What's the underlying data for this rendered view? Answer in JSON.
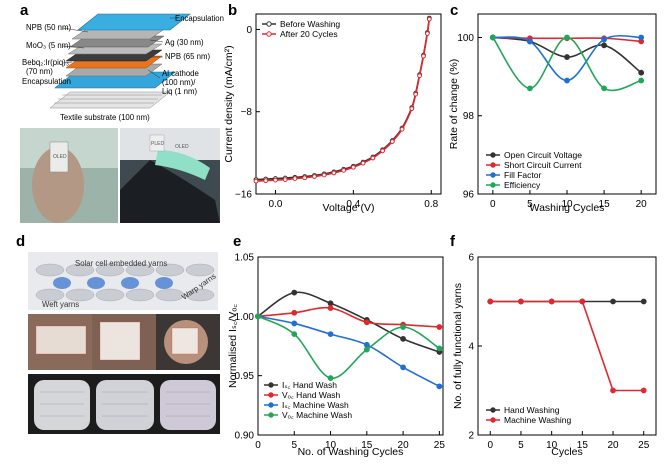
{
  "panels": {
    "a": {
      "label": "a"
    },
    "b": {
      "label": "b"
    },
    "c": {
      "label": "c"
    },
    "d": {
      "label": "d"
    },
    "e": {
      "label": "e"
    },
    "f": {
      "label": "f"
    }
  },
  "panel_a": {
    "layers": [
      {
        "name": "encapsulation-label",
        "text": "Encapsulation"
      },
      {
        "name": "npb50-label",
        "text": "NPB (50 nm)"
      },
      {
        "name": "ag-label",
        "text": "Ag (30 nm)"
      },
      {
        "name": "moo3-label",
        "text": "MoO₃ (5 nm)"
      },
      {
        "name": "npb65-label",
        "text": "NPB (65 nm)"
      },
      {
        "name": "bebq-label",
        "text": "Bebq₂:Ir(piq)₃"
      },
      {
        "name": "bebq-thickness-label",
        "text": "(70 nm)"
      },
      {
        "name": "al-label",
        "text": "Al cathode"
      },
      {
        "name": "al-thickness-label",
        "text": "(100 nm)/"
      },
      {
        "name": "liq-label",
        "text": "Liq (1 nm)"
      },
      {
        "name": "encapsulation-bottom-label",
        "text": "Encapsulation"
      },
      {
        "name": "textile-label",
        "text": "Textile substrate (100 nm)"
      }
    ],
    "photo_text": [
      "OLED",
      "PLED",
      "OLED"
    ]
  },
  "panel_d": {
    "annotations": [
      "Solar cell embedded yarns",
      "Weft yarns",
      "Warp yarns"
    ]
  },
  "colors": {
    "black": "#333333",
    "red": "#e0282e",
    "blue": "#1f6fd6",
    "green": "#21a65a"
  },
  "chart_data": [
    {
      "id": "b",
      "type": "line",
      "xlabel": "Voltage (V)",
      "ylabel": "Current density (mA/cm²)",
      "xlim": [
        -0.1,
        0.85
      ],
      "ylim": [
        -16,
        1.5
      ],
      "xticks": [
        0.0,
        0.4,
        0.8
      ],
      "xtick_labels": [
        "0.0",
        "0.4",
        "0.8"
      ],
      "yticks": [
        -16,
        -8,
        0
      ],
      "ytick_labels": [
        "−16",
        "−8",
        "0"
      ],
      "legend": "top-left",
      "series": [
        {
          "name": "Before Washing",
          "color": "#333333",
          "x": [
            -0.1,
            -0.05,
            0.0,
            0.05,
            0.1,
            0.15,
            0.2,
            0.25,
            0.3,
            0.35,
            0.4,
            0.45,
            0.5,
            0.55,
            0.6,
            0.65,
            0.7,
            0.72,
            0.74,
            0.76,
            0.78,
            0.79
          ],
          "y": [
            -14.6,
            -14.55,
            -14.5,
            -14.45,
            -14.38,
            -14.3,
            -14.2,
            -14.05,
            -13.85,
            -13.6,
            -13.3,
            -12.9,
            -12.4,
            -11.7,
            -10.8,
            -9.6,
            -7.6,
            -6.2,
            -4.4,
            -2.5,
            -0.3,
            1.1
          ]
        },
        {
          "name": "After 20 Cycles",
          "color": "#e0282e",
          "x": [
            -0.1,
            -0.05,
            0.0,
            0.05,
            0.1,
            0.15,
            0.2,
            0.25,
            0.3,
            0.35,
            0.4,
            0.45,
            0.5,
            0.55,
            0.6,
            0.65,
            0.7,
            0.72,
            0.74,
            0.76,
            0.78,
            0.79
          ],
          "y": [
            -14.75,
            -14.7,
            -14.65,
            -14.6,
            -14.5,
            -14.42,
            -14.3,
            -14.15,
            -13.95,
            -13.7,
            -13.4,
            -13.0,
            -12.5,
            -11.8,
            -10.9,
            -9.7,
            -7.7,
            -6.3,
            -4.5,
            -2.6,
            -0.4,
            1.0
          ]
        }
      ]
    },
    {
      "id": "c",
      "type": "line",
      "xlabel": "Washing Cycles",
      "ylabel": "Rate of change (%)",
      "xlim": [
        -2,
        22
      ],
      "ylim": [
        96,
        100.6
      ],
      "xticks": [
        0,
        5,
        10,
        15,
        20
      ],
      "xtick_labels": [
        "0",
        "5",
        "10",
        "15",
        "20"
      ],
      "yticks": [
        96,
        98,
        100
      ],
      "ytick_labels": [
        "96",
        "98",
        "100"
      ],
      "legend": "bottom-left",
      "series": [
        {
          "name": "Open Circuit Voltage",
          "color": "#333333",
          "x": [
            0,
            5,
            10,
            15,
            20
          ],
          "y": [
            100.0,
            99.9,
            99.5,
            99.8,
            99.1
          ]
        },
        {
          "name": "Short Circuit Current",
          "color": "#e0282e",
          "x": [
            0,
            5,
            10,
            15,
            20
          ],
          "y": [
            100.0,
            99.98,
            99.98,
            99.98,
            99.9
          ]
        },
        {
          "name": "Fill Factor",
          "color": "#1f6fd6",
          "x": [
            0,
            5,
            10,
            15,
            20
          ],
          "y": [
            100.0,
            99.9,
            98.9,
            99.95,
            100.0
          ]
        },
        {
          "name": "Efficiency",
          "color": "#21a65a",
          "x": [
            0,
            5,
            10,
            15,
            20
          ],
          "y": [
            100.0,
            98.7,
            100.0,
            98.7,
            98.9
          ]
        }
      ]
    },
    {
      "id": "e",
      "type": "line",
      "xlabel": "No. of Washing Cycles",
      "ylabel": "Normalised Iₛ꜀/Vₒ꜀",
      "xlim": [
        0,
        25.5
      ],
      "ylim": [
        0.9,
        1.05
      ],
      "xticks": [
        0,
        5,
        10,
        15,
        20,
        25
      ],
      "xtick_labels": [
        "0",
        "5",
        "10",
        "15",
        "20",
        "25"
      ],
      "yticks": [
        0.9,
        0.95,
        1.0,
        1.05
      ],
      "ytick_labels": [
        "0.90",
        "0.95",
        "1.00",
        "1.05"
      ],
      "legend": "bottom-left",
      "series": [
        {
          "name": "Iₛ꜀ Hand Wash",
          "color": "#333333",
          "x": [
            0,
            5,
            10,
            15,
            20,
            25
          ],
          "y": [
            1.0,
            1.02,
            1.011,
            0.997,
            0.981,
            0.97
          ]
        },
        {
          "name": "Vₒ꜀ Hand Wash",
          "color": "#e0282e",
          "x": [
            0,
            5,
            10,
            15,
            20,
            25
          ],
          "y": [
            1.0,
            1.003,
            1.007,
            0.995,
            0.993,
            0.991
          ]
        },
        {
          "name": "Iₛ꜀ Machine Wash",
          "color": "#1f6fd6",
          "x": [
            0,
            5,
            10,
            15,
            20,
            25
          ],
          "y": [
            1.0,
            0.994,
            0.985,
            0.976,
            0.957,
            0.941
          ]
        },
        {
          "name": "Vₒ꜀ Machine Wash",
          "color": "#21a65a",
          "x": [
            0,
            5,
            10,
            15,
            20,
            25
          ],
          "y": [
            1.0,
            0.985,
            0.948,
            0.972,
            0.991,
            0.973
          ]
        }
      ]
    },
    {
      "id": "f",
      "type": "line",
      "xlabel": "Cycles",
      "ylabel": "No. of fully functional yarns",
      "xlim": [
        -2,
        27
      ],
      "ylim": [
        2,
        6
      ],
      "xticks": [
        0,
        5,
        10,
        15,
        20,
        25
      ],
      "xtick_labels": [
        "0",
        "5",
        "10",
        "15",
        "20",
        "25"
      ],
      "yticks": [
        2,
        4,
        6
      ],
      "ytick_labels": [
        "2",
        "4",
        "6"
      ],
      "legend": "bottom-left",
      "series": [
        {
          "name": "Hand Washing",
          "color": "#333333",
          "x": [
            0,
            5,
            10,
            15,
            20,
            25
          ],
          "y": [
            5,
            5,
            5,
            5,
            5,
            5
          ]
        },
        {
          "name": "Machine Washing",
          "color": "#e0282e",
          "x": [
            0,
            5,
            10,
            15,
            20,
            25
          ],
          "y": [
            5,
            5,
            5,
            5,
            3,
            3
          ]
        }
      ]
    }
  ]
}
